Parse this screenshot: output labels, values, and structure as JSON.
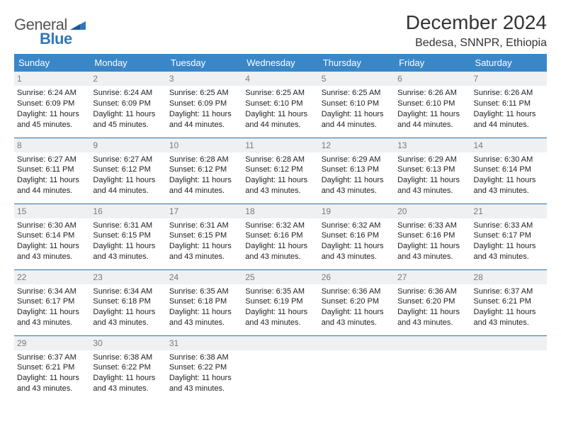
{
  "brand": {
    "word1": "General",
    "word2": "Blue"
  },
  "colors": {
    "header_bg": "#3a87c8",
    "row_border": "#2f6fa8",
    "daynum_bg": "#eef0f2",
    "logo_blue": "#2f77bb"
  },
  "title": {
    "month_year": "December 2024",
    "location": "Bedesa, SNNPR, Ethiopia"
  },
  "day_headers": [
    "Sunday",
    "Monday",
    "Tuesday",
    "Wednesday",
    "Thursday",
    "Friday",
    "Saturday"
  ],
  "weeks": [
    [
      {
        "n": "1",
        "sr": "6:24 AM",
        "ss": "6:09 PM",
        "dl": "11 hours and 45 minutes."
      },
      {
        "n": "2",
        "sr": "6:24 AM",
        "ss": "6:09 PM",
        "dl": "11 hours and 45 minutes."
      },
      {
        "n": "3",
        "sr": "6:25 AM",
        "ss": "6:09 PM",
        "dl": "11 hours and 44 minutes."
      },
      {
        "n": "4",
        "sr": "6:25 AM",
        "ss": "6:10 PM",
        "dl": "11 hours and 44 minutes."
      },
      {
        "n": "5",
        "sr": "6:25 AM",
        "ss": "6:10 PM",
        "dl": "11 hours and 44 minutes."
      },
      {
        "n": "6",
        "sr": "6:26 AM",
        "ss": "6:10 PM",
        "dl": "11 hours and 44 minutes."
      },
      {
        "n": "7",
        "sr": "6:26 AM",
        "ss": "6:11 PM",
        "dl": "11 hours and 44 minutes."
      }
    ],
    [
      {
        "n": "8",
        "sr": "6:27 AM",
        "ss": "6:11 PM",
        "dl": "11 hours and 44 minutes."
      },
      {
        "n": "9",
        "sr": "6:27 AM",
        "ss": "6:12 PM",
        "dl": "11 hours and 44 minutes."
      },
      {
        "n": "10",
        "sr": "6:28 AM",
        "ss": "6:12 PM",
        "dl": "11 hours and 44 minutes."
      },
      {
        "n": "11",
        "sr": "6:28 AM",
        "ss": "6:12 PM",
        "dl": "11 hours and 43 minutes."
      },
      {
        "n": "12",
        "sr": "6:29 AM",
        "ss": "6:13 PM",
        "dl": "11 hours and 43 minutes."
      },
      {
        "n": "13",
        "sr": "6:29 AM",
        "ss": "6:13 PM",
        "dl": "11 hours and 43 minutes."
      },
      {
        "n": "14",
        "sr": "6:30 AM",
        "ss": "6:14 PM",
        "dl": "11 hours and 43 minutes."
      }
    ],
    [
      {
        "n": "15",
        "sr": "6:30 AM",
        "ss": "6:14 PM",
        "dl": "11 hours and 43 minutes."
      },
      {
        "n": "16",
        "sr": "6:31 AM",
        "ss": "6:15 PM",
        "dl": "11 hours and 43 minutes."
      },
      {
        "n": "17",
        "sr": "6:31 AM",
        "ss": "6:15 PM",
        "dl": "11 hours and 43 minutes."
      },
      {
        "n": "18",
        "sr": "6:32 AM",
        "ss": "6:16 PM",
        "dl": "11 hours and 43 minutes."
      },
      {
        "n": "19",
        "sr": "6:32 AM",
        "ss": "6:16 PM",
        "dl": "11 hours and 43 minutes."
      },
      {
        "n": "20",
        "sr": "6:33 AM",
        "ss": "6:16 PM",
        "dl": "11 hours and 43 minutes."
      },
      {
        "n": "21",
        "sr": "6:33 AM",
        "ss": "6:17 PM",
        "dl": "11 hours and 43 minutes."
      }
    ],
    [
      {
        "n": "22",
        "sr": "6:34 AM",
        "ss": "6:17 PM",
        "dl": "11 hours and 43 minutes."
      },
      {
        "n": "23",
        "sr": "6:34 AM",
        "ss": "6:18 PM",
        "dl": "11 hours and 43 minutes."
      },
      {
        "n": "24",
        "sr": "6:35 AM",
        "ss": "6:18 PM",
        "dl": "11 hours and 43 minutes."
      },
      {
        "n": "25",
        "sr": "6:35 AM",
        "ss": "6:19 PM",
        "dl": "11 hours and 43 minutes."
      },
      {
        "n": "26",
        "sr": "6:36 AM",
        "ss": "6:20 PM",
        "dl": "11 hours and 43 minutes."
      },
      {
        "n": "27",
        "sr": "6:36 AM",
        "ss": "6:20 PM",
        "dl": "11 hours and 43 minutes."
      },
      {
        "n": "28",
        "sr": "6:37 AM",
        "ss": "6:21 PM",
        "dl": "11 hours and 43 minutes."
      }
    ],
    [
      {
        "n": "29",
        "sr": "6:37 AM",
        "ss": "6:21 PM",
        "dl": "11 hours and 43 minutes."
      },
      {
        "n": "30",
        "sr": "6:38 AM",
        "ss": "6:22 PM",
        "dl": "11 hours and 43 minutes."
      },
      {
        "n": "31",
        "sr": "6:38 AM",
        "ss": "6:22 PM",
        "dl": "11 hours and 43 minutes."
      },
      {
        "empty": true
      },
      {
        "empty": true
      },
      {
        "empty": true
      },
      {
        "empty": true
      }
    ]
  ],
  "labels": {
    "sunrise": "Sunrise:",
    "sunset": "Sunset:",
    "daylight": "Daylight:"
  }
}
